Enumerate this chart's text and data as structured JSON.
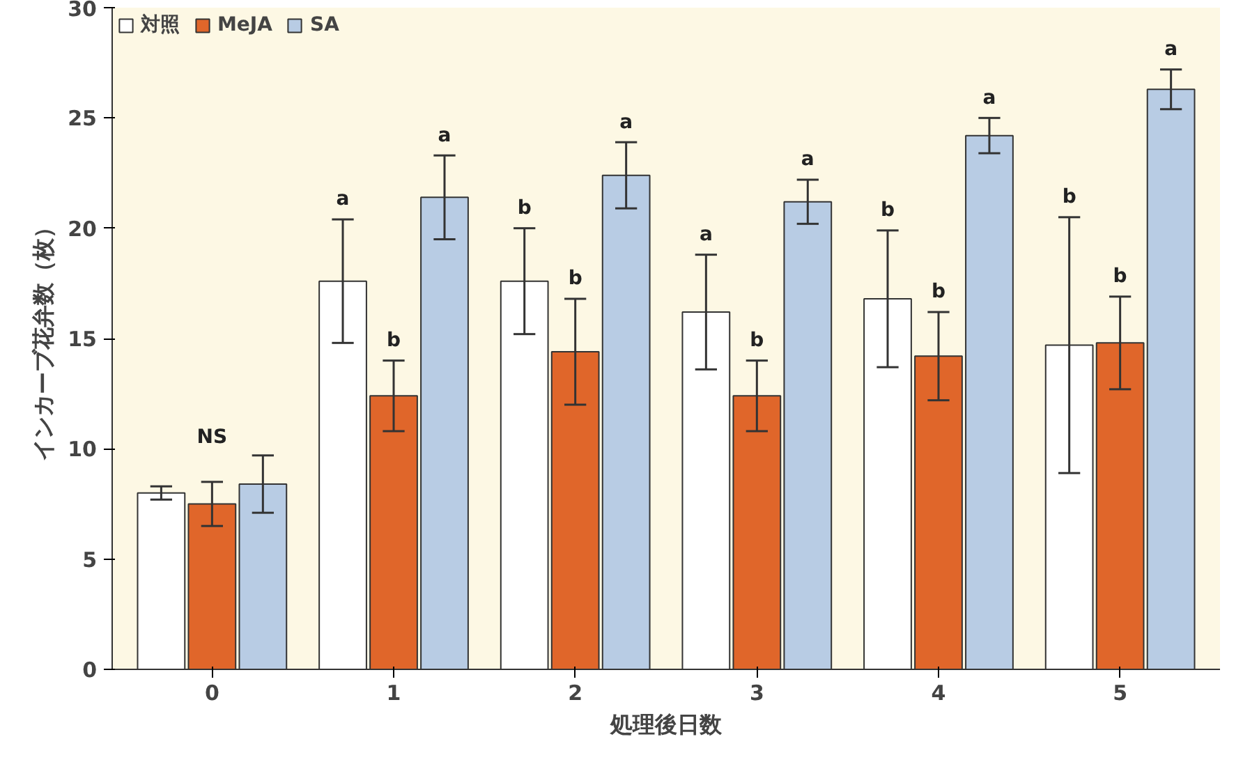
{
  "chart_data": {
    "type": "bar",
    "xlabel": "処理後日数",
    "ylabel": "インカーブ花弁数（枚）",
    "categories": [
      "0",
      "1",
      "2",
      "3",
      "4",
      "5"
    ],
    "series": [
      {
        "name": "対照",
        "color": "#ffffff",
        "values": [
          8.0,
          17.6,
          17.6,
          16.2,
          16.8,
          14.7
        ],
        "errors": [
          0.3,
          2.8,
          2.4,
          2.6,
          3.1,
          5.8
        ]
      },
      {
        "name": "MeJA",
        "color": "#e0662a",
        "values": [
          7.5,
          12.4,
          14.4,
          12.4,
          14.2,
          14.8
        ],
        "errors": [
          1.0,
          1.6,
          2.4,
          1.6,
          2.0,
          2.1
        ]
      },
      {
        "name": "SA",
        "color": "#b8cce4",
        "values": [
          8.4,
          21.4,
          22.4,
          21.2,
          24.2,
          26.3
        ],
        "errors": [
          1.3,
          1.9,
          1.5,
          1.0,
          0.8,
          0.9
        ]
      }
    ],
    "ylim": [
      0,
      30
    ],
    "yticks": [
      0,
      5,
      10,
      15,
      20,
      25,
      30
    ],
    "grid": false,
    "legend": "top left",
    "annotations": [
      "NS",
      "a",
      "b",
      "a",
      "b",
      "b",
      "a",
      "a",
      "b",
      "a",
      "b",
      "b",
      "a",
      "b",
      "b",
      "a"
    ]
  }
}
